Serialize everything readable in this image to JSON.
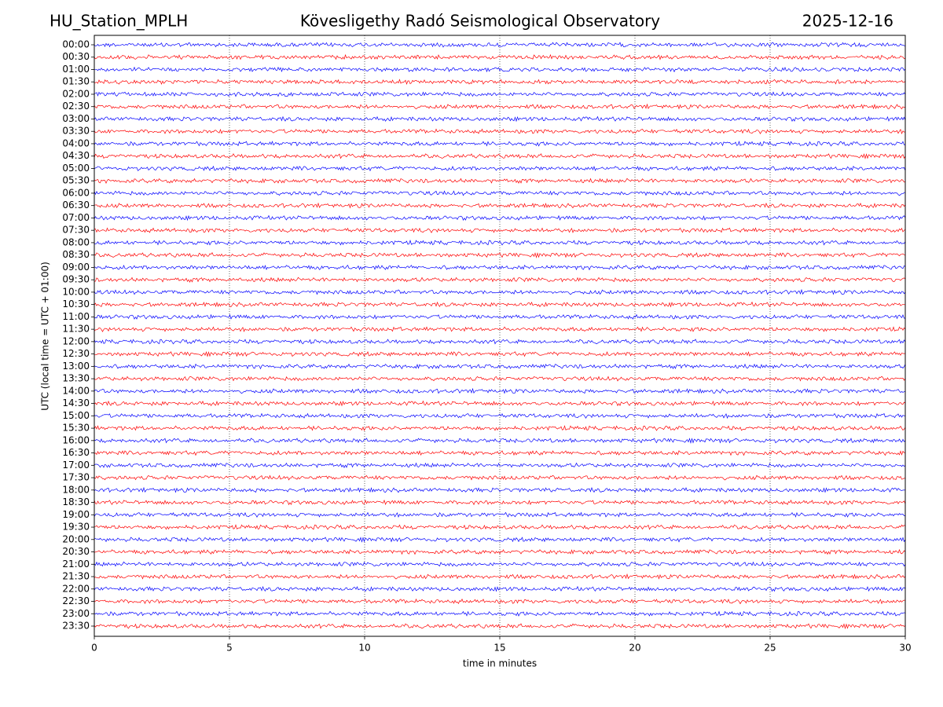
{
  "chart_data": {
    "type": "helicorder",
    "station": "HU_Station_MPLH",
    "title": "Kövesligethy Radó Seismological Observatory",
    "date": "2025-12-16",
    "xlabel": "time in minutes",
    "ylabel": "UTC (local time = UTC + 01:00)",
    "categories": [
      "00:00",
      "00:30",
      "01:00",
      "01:30",
      "02:00",
      "02:30",
      "03:00",
      "03:30",
      "04:00",
      "04:30",
      "05:00",
      "05:30",
      "06:00",
      "06:30",
      "07:00",
      "07:30",
      "08:00",
      "08:30",
      "09:00",
      "09:30",
      "10:00",
      "10:30",
      "11:00",
      "11:30",
      "12:00",
      "12:30",
      "13:00",
      "13:30",
      "14:00",
      "14:30",
      "15:00",
      "15:30",
      "16:00",
      "16:30",
      "17:00",
      "17:30",
      "18:00",
      "18:30",
      "19:00",
      "19:30",
      "20:00",
      "20:30",
      "21:00",
      "21:30",
      "22:00",
      "22:30",
      "23:00",
      "23:30"
    ],
    "colors": [
      "#0000ff",
      "#ff0000"
    ],
    "xlim": [
      0,
      30
    ],
    "xticks": [
      0,
      5,
      10,
      15,
      20,
      25,
      30
    ],
    "grid": true
  }
}
